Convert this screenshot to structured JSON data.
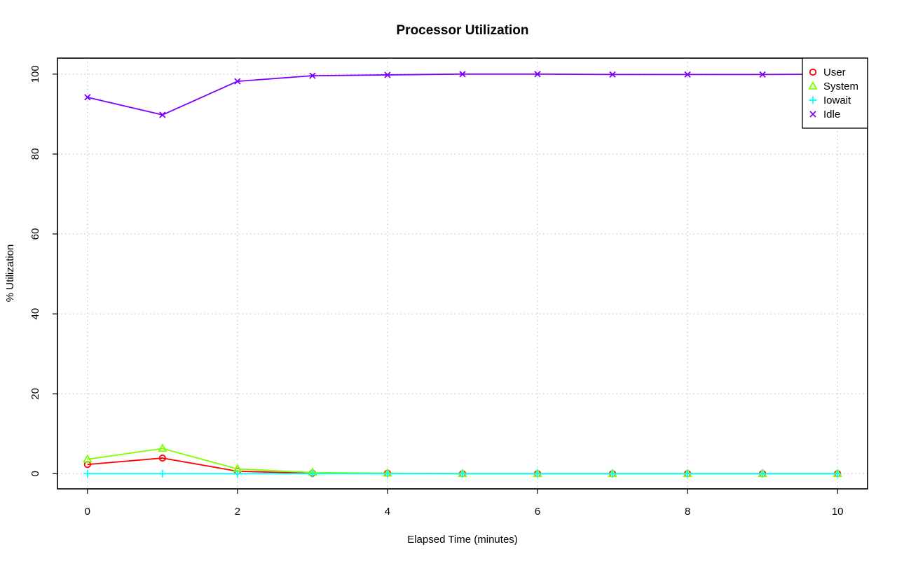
{
  "chart_data": {
    "type": "line",
    "title": "Processor Utilization",
    "xlabel": "Elapsed Time (minutes)",
    "ylabel": "% Utilization",
    "x": [
      0,
      1,
      2,
      3,
      4,
      5,
      6,
      7,
      8,
      9,
      10
    ],
    "xlim": [
      -0.4,
      10.4
    ],
    "ylim": [
      -3.8,
      104
    ],
    "xticks": [
      0,
      2,
      4,
      6,
      8,
      10
    ],
    "yticks": [
      0,
      20,
      40,
      60,
      80,
      100
    ],
    "grid": true,
    "legend_position": "top-right",
    "series": [
      {
        "name": "User",
        "color": "#ff0000",
        "marker": "circle",
        "values": [
          2.3,
          3.9,
          0.6,
          0.1,
          0.1,
          0.0,
          0.0,
          0.0,
          0.0,
          0.0,
          0.0
        ]
      },
      {
        "name": "System",
        "color": "#80ff00",
        "marker": "triangle",
        "values": [
          3.6,
          6.3,
          1.2,
          0.3,
          0.1,
          0.0,
          0.0,
          0.0,
          0.0,
          0.0,
          0.0
        ]
      },
      {
        "name": "Iowait",
        "color": "#00ffff",
        "marker": "plus",
        "values": [
          0.0,
          0.0,
          0.0,
          0.0,
          0.0,
          0.0,
          0.0,
          0.0,
          0.0,
          0.0,
          0.0
        ]
      },
      {
        "name": "Idle",
        "color": "#8000ff",
        "marker": "cross",
        "values": [
          94.2,
          89.8,
          98.2,
          99.6,
          99.8,
          100.0,
          100.0,
          99.9,
          99.9,
          99.9,
          100.0
        ]
      }
    ]
  }
}
